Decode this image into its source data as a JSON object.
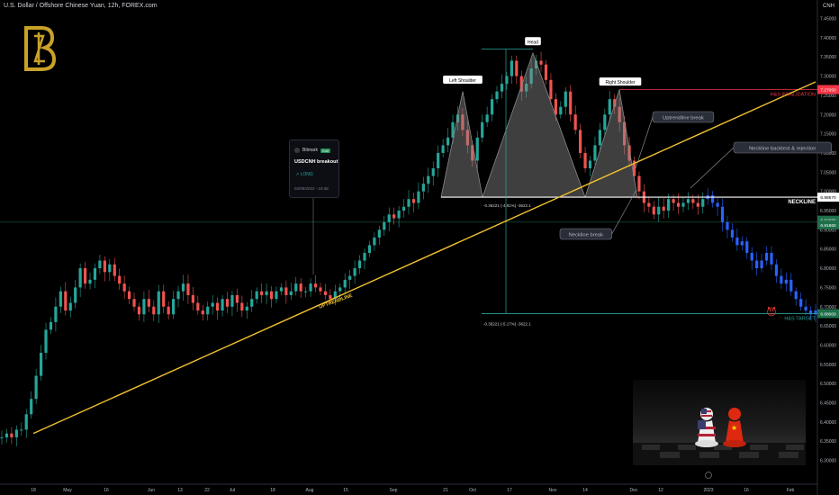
{
  "header": {
    "title": "U.S. Dollar / Offshore Chinese Yuan, 12h, FOREX.com"
  },
  "currency_label": "CNH",
  "chart_data": {
    "type": "candlestick",
    "title": "U.S. Dollar / Offshore Chinese Yuan, 12h, FOREX.com",
    "ylabel": "CNH",
    "ylim": [
      6.27,
      7.47
    ],
    "y_ticks": [
      "7.45000",
      "7.40000",
      "7.35000",
      "7.30000",
      "7.25000",
      "7.20000",
      "7.15000",
      "7.10000",
      "7.05000",
      "7.00000",
      "6.95000",
      "6.90000",
      "6.85000",
      "6.80000",
      "6.75000",
      "6.70000",
      "6.65000",
      "6.60000",
      "6.55000",
      "6.50000",
      "6.45000",
      "6.40000",
      "6.35000",
      "6.30000"
    ],
    "x_ticks": [
      "18",
      "May",
      "16",
      "Jun",
      "13",
      "22",
      "Jul",
      "18",
      "Aug",
      "15",
      "Sep",
      "21",
      "Oct",
      "17",
      "Nov",
      "14",
      "Dec",
      "12",
      "2023",
      "16",
      "Feb"
    ],
    "series": [
      {
        "values": [
          6.36,
          6.37,
          6.36,
          6.38,
          6.38,
          6.42,
          6.46,
          6.52,
          6.58,
          6.64,
          6.66,
          6.7,
          6.74,
          6.69,
          6.71,
          6.75,
          6.8,
          6.76,
          6.77,
          6.8,
          6.82,
          6.79,
          6.81,
          6.78,
          6.76,
          6.74,
          6.72,
          6.7,
          6.68,
          6.72,
          6.7,
          6.68,
          6.74,
          6.7,
          6.68,
          6.72,
          6.74,
          6.76,
          6.73,
          6.71,
          6.69,
          6.68,
          6.7,
          6.71,
          6.69,
          6.72,
          6.7,
          6.73,
          6.71,
          6.69,
          6.7,
          6.72,
          6.74,
          6.73,
          6.74,
          6.72,
          6.74,
          6.75,
          6.73,
          6.74,
          6.76,
          6.74,
          6.74,
          6.76,
          6.75,
          6.74,
          6.73,
          6.72,
          6.74,
          6.75,
          6.77,
          6.78,
          6.8,
          6.82,
          6.84,
          6.86,
          6.88,
          6.9,
          6.92,
          6.94,
          6.93,
          6.95,
          6.96,
          6.98,
          6.97,
          7.0,
          7.02,
          7.04,
          7.06,
          7.1,
          7.12,
          7.14,
          7.18,
          7.2,
          7.16,
          7.12,
          7.08,
          7.14,
          7.18,
          7.2,
          7.24,
          7.26,
          7.28,
          7.3,
          7.34,
          7.3,
          7.26,
          7.28,
          7.32,
          7.34,
          7.33,
          7.29,
          7.24,
          7.2,
          7.22,
          7.26,
          7.2,
          7.16,
          7.1,
          7.06,
          7.08,
          7.12,
          7.16,
          7.2,
          7.24,
          7.22,
          7.18,
          7.12,
          7.08,
          7.04,
          7.0,
          6.97,
          6.96,
          6.94,
          6.96,
          6.95,
          6.98,
          6.97,
          6.96,
          6.97,
          6.98,
          6.97,
          6.96,
          6.98,
          6.99,
          6.97,
          6.96,
          6.92,
          6.9,
          6.88,
          6.86,
          6.87,
          6.84,
          6.82,
          6.8,
          6.82,
          6.84,
          6.81,
          6.78,
          6.76,
          6.77,
          6.74,
          6.72,
          6.7,
          6.69,
          6.68,
          6.69
        ],
        "colors": {
          "up": "#26a69a",
          "down": "#ef5350",
          "projection": "#2962ff"
        }
      }
    ],
    "levels": {
      "neckline": 6.985,
      "hs_invalidation": 7.265,
      "hs_target": 6.682,
      "current_prices": [
        "6.92365",
        "6.91860"
      ],
      "neckline_price": "6.98570",
      "invalidation_price": "7.27050",
      "target_price": "6.68000"
    },
    "annotations": {
      "left_shoulder": "Left Shoulder",
      "head": "Head",
      "right_shoulder": "Right Shoulder",
      "neckline": "NECKLINE",
      "hs_invalidation": "H&S INVALIDATION",
      "hs_target": "H&S TARGET",
      "uptrendline": "UPTRENDLINE",
      "uptrendline_break": "Uptrendline break",
      "neckline_break": "Neckline break",
      "neckline_backtest": "Neckline backtest & rejection",
      "measure_top": "-0.36221 (-4.91%) -3622.1",
      "measure_bottom": "-0.36221 (-5.17%) -3622.1"
    },
    "colors": {
      "uptrend": "#f0c030",
      "pattern": "#888888",
      "invalidation": "#f23645",
      "target": "#26a69a",
      "accent": "#c9a227"
    }
  },
  "post": {
    "author": "Bitmark",
    "badge": "Edit",
    "title": "USDCNH breakout",
    "direction": "↗ LONG",
    "date": "02/08/2022 - 19:38"
  },
  "photo_label": "US vs China pawns"
}
